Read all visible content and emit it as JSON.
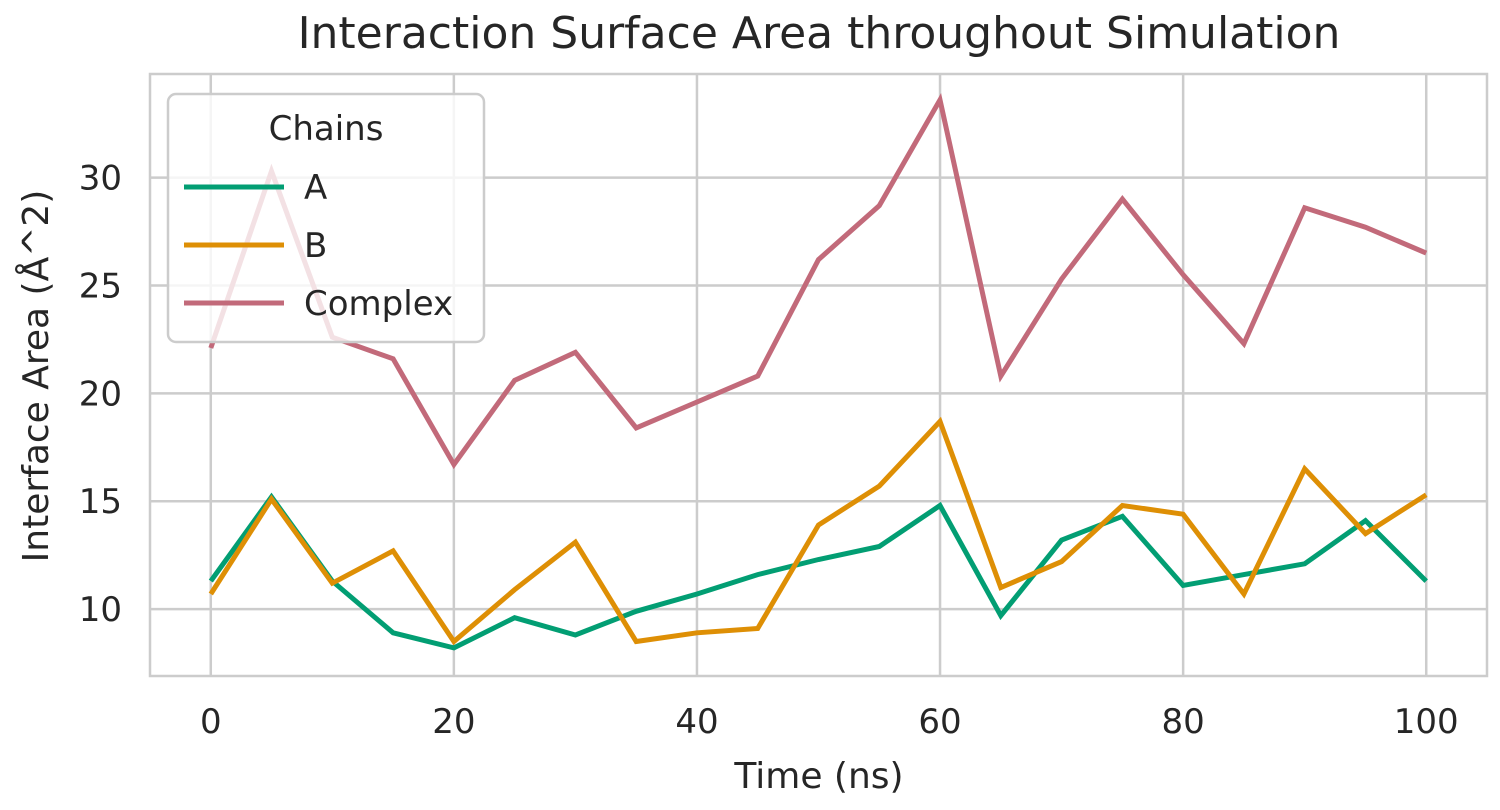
{
  "chart_data": {
    "type": "line",
    "title": "Interaction Surface Area throughout Simulation",
    "xlabel": "Time (ns)",
    "ylabel": "Interface Area (Å^2)",
    "x": [
      0,
      5,
      10,
      15,
      20,
      25,
      30,
      35,
      40,
      45,
      50,
      55,
      60,
      65,
      70,
      75,
      80,
      85,
      90,
      95,
      100
    ],
    "xlim": [
      -5,
      105
    ],
    "ylim": [
      6.9,
      34.8
    ],
    "xticks": [
      0,
      20,
      40,
      60,
      80,
      100
    ],
    "yticks": [
      10,
      15,
      20,
      25,
      30
    ],
    "grid": true,
    "legend": {
      "title": "Chains",
      "placement": "top-left"
    },
    "series": [
      {
        "name": "A",
        "color": "#029e73",
        "values": [
          11.3,
          15.2,
          11.3,
          8.9,
          8.2,
          9.6,
          8.8,
          9.9,
          10.7,
          11.6,
          12.3,
          12.9,
          14.8,
          9.7,
          13.2,
          14.3,
          11.1,
          11.6,
          12.1,
          14.1,
          11.3
        ]
      },
      {
        "name": "B",
        "color": "#de8f05",
        "values": [
          10.7,
          15.1,
          11.2,
          12.7,
          8.5,
          10.9,
          13.1,
          8.5,
          8.9,
          9.1,
          13.9,
          15.7,
          18.7,
          11.0,
          12.2,
          14.8,
          14.4,
          10.7,
          16.5,
          13.5,
          15.3
        ]
      },
      {
        "name": "Complex",
        "color": "#c26a7a",
        "values": [
          22.1,
          30.3,
          22.6,
          21.6,
          16.7,
          20.6,
          21.9,
          18.4,
          19.6,
          20.8,
          26.2,
          28.7,
          33.6,
          20.8,
          25.3,
          29.0,
          25.5,
          22.3,
          28.6,
          27.7,
          26.5
        ]
      }
    ]
  }
}
